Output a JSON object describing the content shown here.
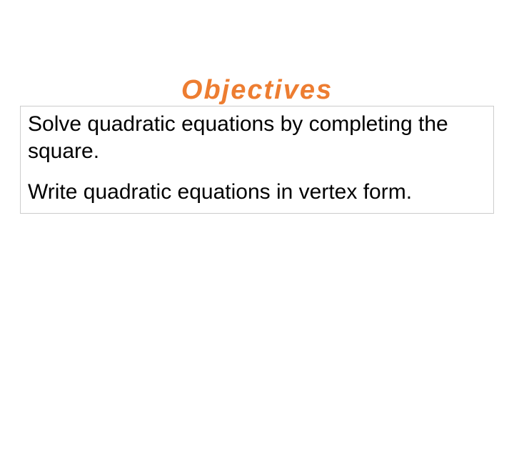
{
  "title": {
    "text": "Objectives",
    "color": "#ed7d31",
    "fontsize": 38
  },
  "box": {
    "border_color": "#cccccc",
    "background": "#ffffff"
  },
  "objectives": [
    "Solve quadratic equations by completing the square.",
    "Write quadratic equations in vertex form."
  ],
  "body_fontsize": 30,
  "body_color": "#000000"
}
